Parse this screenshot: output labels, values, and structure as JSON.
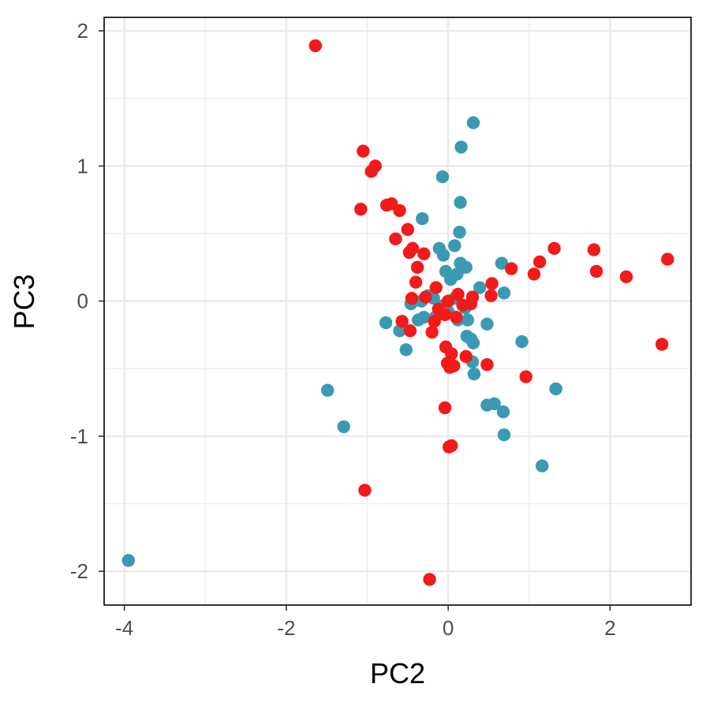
{
  "chart_data": {
    "type": "scatter",
    "title": "",
    "xlabel": "PC2",
    "ylabel": "PC3",
    "xlim": [
      -4.25,
      3.0
    ],
    "ylim": [
      -2.25,
      2.1
    ],
    "x_ticks": [
      -4,
      -2,
      0,
      2
    ],
    "x_tick_labels": [
      "-4",
      "-2",
      "0",
      "2"
    ],
    "y_ticks": [
      -2,
      -1,
      0,
      1,
      2
    ],
    "y_tick_labels": [
      "-2",
      "-1",
      "0",
      "1",
      "2"
    ],
    "x_minor_ticks": [
      -3,
      -1,
      1
    ],
    "y_minor_ticks": [
      -1.5,
      -0.5,
      0.5,
      1.5
    ],
    "grid": true,
    "legend": "none",
    "series": [
      {
        "color": "#3A9AB2",
        "points": [
          [
            0.31,
            1.32
          ],
          [
            0.16,
            1.14
          ],
          [
            -0.07,
            0.92
          ],
          [
            0.15,
            0.73
          ],
          [
            -0.32,
            0.61
          ],
          [
            0.14,
            0.51
          ],
          [
            -0.11,
            0.39
          ],
          [
            0.08,
            0.41
          ],
          [
            -0.06,
            0.34
          ],
          [
            0.15,
            0.28
          ],
          [
            0.22,
            0.25
          ],
          [
            0.66,
            0.28
          ],
          [
            0.11,
            0.2
          ],
          [
            -0.03,
            0.22
          ],
          [
            0.03,
            0.16
          ],
          [
            0.39,
            0.1
          ],
          [
            0.69,
            0.06
          ],
          [
            -0.18,
            0.02
          ],
          [
            -0.46,
            -0.02
          ],
          [
            -0.33,
            0.0
          ],
          [
            -0.05,
            -0.03
          ],
          [
            0.21,
            -0.05
          ],
          [
            -0.3,
            -0.12
          ],
          [
            -0.37,
            -0.14
          ],
          [
            -0.16,
            -0.12
          ],
          [
            0.12,
            -0.14
          ],
          [
            0.24,
            -0.14
          ],
          [
            -0.77,
            -0.16
          ],
          [
            0.48,
            -0.17
          ],
          [
            -0.6,
            -0.22
          ],
          [
            0.23,
            -0.26
          ],
          [
            0.28,
            -0.28
          ],
          [
            0.31,
            -0.31
          ],
          [
            -0.52,
            -0.36
          ],
          [
            0.91,
            -0.3
          ],
          [
            0.3,
            -0.45
          ],
          [
            0.32,
            -0.54
          ],
          [
            -1.49,
            -0.66
          ],
          [
            1.33,
            -0.65
          ],
          [
            0.48,
            -0.77
          ],
          [
            0.57,
            -0.76
          ],
          [
            0.68,
            -0.82
          ],
          [
            -1.29,
            -0.93
          ],
          [
            0.69,
            -0.99
          ],
          [
            1.16,
            -1.22
          ],
          [
            -3.95,
            -1.92
          ],
          [
            0.08,
            0.02
          ],
          [
            -0.25,
            0.04
          ],
          [
            0.0,
            -0.08
          ]
        ]
      },
      {
        "color": "#F21A1A",
        "points": [
          [
            -1.64,
            1.89
          ],
          [
            -1.05,
            1.11
          ],
          [
            -0.9,
            1.0
          ],
          [
            -0.95,
            0.96
          ],
          [
            -0.76,
            0.71
          ],
          [
            -0.7,
            0.72
          ],
          [
            -1.08,
            0.68
          ],
          [
            -0.6,
            0.67
          ],
          [
            -0.5,
            0.53
          ],
          [
            -0.65,
            0.46
          ],
          [
            -0.44,
            0.39
          ],
          [
            -0.48,
            0.36
          ],
          [
            -0.3,
            0.35
          ],
          [
            1.31,
            0.39
          ],
          [
            1.13,
            0.29
          ],
          [
            1.8,
            0.38
          ],
          [
            2.71,
            0.31
          ],
          [
            1.83,
            0.22
          ],
          [
            2.2,
            0.18
          ],
          [
            0.78,
            0.24
          ],
          [
            1.06,
            0.2
          ],
          [
            -0.38,
            0.25
          ],
          [
            -0.4,
            0.14
          ],
          [
            0.54,
            0.13
          ],
          [
            -0.15,
            0.1
          ],
          [
            0.12,
            0.05
          ],
          [
            -0.45,
            0.02
          ],
          [
            -0.28,
            0.03
          ],
          [
            0.53,
            0.04
          ],
          [
            0.3,
            0.03
          ],
          [
            0.0,
            0.0
          ],
          [
            0.18,
            -0.03
          ],
          [
            0.28,
            -0.02
          ],
          [
            -0.12,
            -0.06
          ],
          [
            -0.04,
            -0.1
          ],
          [
            0.1,
            -0.12
          ],
          [
            -0.17,
            -0.15
          ],
          [
            -0.57,
            -0.15
          ],
          [
            -0.47,
            -0.22
          ],
          [
            -0.2,
            -0.23
          ],
          [
            2.64,
            -0.32
          ],
          [
            -0.03,
            -0.34
          ],
          [
            0.04,
            -0.39
          ],
          [
            0.22,
            -0.41
          ],
          [
            -0.01,
            -0.46
          ],
          [
            0.02,
            -0.49
          ],
          [
            0.07,
            -0.48
          ],
          [
            0.48,
            -0.47
          ],
          [
            0.96,
            -0.56
          ],
          [
            -0.04,
            -0.79
          ],
          [
            0.01,
            -1.08
          ],
          [
            0.04,
            -1.07
          ],
          [
            -1.03,
            -1.4
          ],
          [
            -0.23,
            -2.06
          ]
        ]
      }
    ]
  }
}
